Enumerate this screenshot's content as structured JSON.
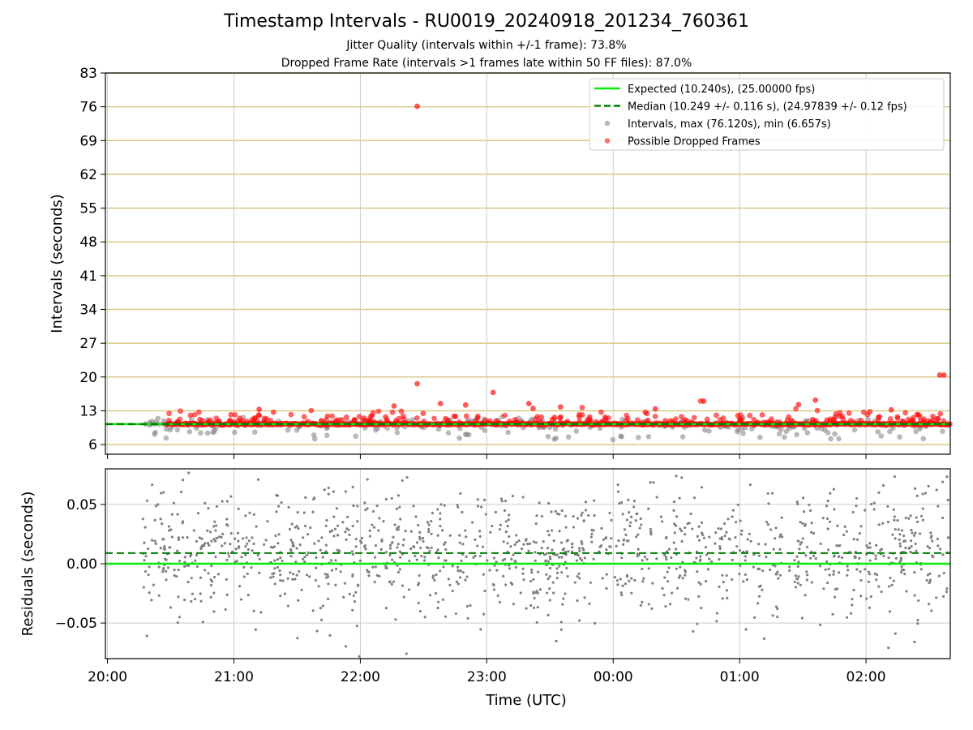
{
  "figure": {
    "title": "Timestamp Intervals - RU0019_20240918_201234_760361",
    "subtitle_jitter": "Jitter Quality (intervals within +/-1 frame): 73.8%",
    "subtitle_dropped": "Dropped Frame Rate (intervals >1 frames late within 50 FF files): 87.0%"
  },
  "chart_data": [
    {
      "type": "scatter",
      "panel": "intervals",
      "ylabel": "Intervals (seconds)",
      "xlabel": "",
      "ylim": [
        4,
        83
      ],
      "yticks": [
        "6",
        "13",
        "20",
        "27",
        "34",
        "41",
        "48",
        "55",
        "62",
        "69",
        "76",
        "83"
      ],
      "xticks": [
        "20:00",
        "21:00",
        "22:00",
        "23:00",
        "00:00",
        "01:00",
        "02:00"
      ],
      "grid": true,
      "legend_position": "top-right",
      "legend": [
        {
          "label": "Expected (10.240s), (25.00000 fps)",
          "color": "#00ee00",
          "style": "solid-line"
        },
        {
          "label": "Median (10.249 +/- 0.116 s), (24.97839 +/- 0.12 fps)",
          "color": "#008000",
          "style": "dashed-line"
        },
        {
          "label": "Intervals, max (76.120s), min (6.657s)",
          "color": "#808080",
          "style": "marker"
        },
        {
          "label": "Possible Dropped Frames",
          "color": "#ff0000",
          "style": "marker"
        }
      ],
      "expected_interval": 10.24,
      "median_interval": 10.249,
      "max_interval": 76.12,
      "min_interval": 6.657,
      "dropped_frame_outliers": [
        {
          "x": "22:27",
          "y": 76.1
        },
        {
          "x": "22:27",
          "y": 18.6
        },
        {
          "x": "02:35",
          "y": 20.4
        },
        {
          "x": "02:37",
          "y": 20.4
        },
        {
          "x": "23:03",
          "y": 16.8
        },
        {
          "x": "00:43",
          "y": 15.0
        },
        {
          "x": "01:36",
          "y": 15.2
        },
        {
          "x": "23:20",
          "y": 14.5
        },
        {
          "x": "22:16",
          "y": 14.0
        },
        {
          "x": "22:38",
          "y": 14.5
        },
        {
          "x": "22:50",
          "y": 14.2
        },
        {
          "x": "01:28",
          "y": 14.3
        },
        {
          "x": "23:22",
          "y": 13.5
        },
        {
          "x": "23:35",
          "y": 13.8
        },
        {
          "x": "00:20",
          "y": 13.4
        },
        {
          "x": "02:12",
          "y": 13.2
        },
        {
          "x": "21:12",
          "y": 13.3
        },
        {
          "x": "22:28",
          "y": 10.3
        }
      ]
    },
    {
      "type": "scatter",
      "panel": "residuals",
      "ylabel": "Residuals (seconds)",
      "xlabel": "Time (UTC)",
      "ylim": [
        -0.08,
        0.08
      ],
      "yticks": [
        "−0.05",
        "0.00",
        "0.05"
      ],
      "xticks": [
        "20:00",
        "21:00",
        "22:00",
        "23:00",
        "00:00",
        "01:00",
        "02:00"
      ],
      "grid": true,
      "expected_residual": 0.0,
      "median_residual": 0.009
    }
  ],
  "colors": {
    "expected": "#00ee00",
    "median": "#008000",
    "intervals": "#808080",
    "dropped": "#ff0000",
    "gold_grid": "#d8c98a",
    "grey_grid": "#cccccc"
  }
}
